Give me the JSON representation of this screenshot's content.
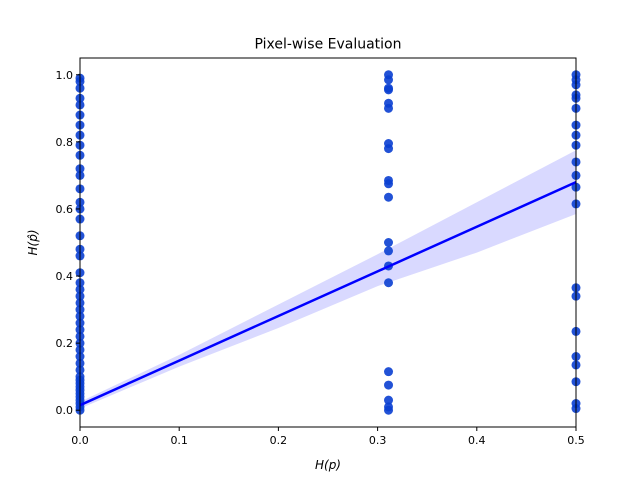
{
  "chart_data": {
    "type": "scatter",
    "title": "Pixel-wise Evaluation",
    "xlabel": "H(p)",
    "ylabel": "H(p̂)",
    "xlim": [
      0.0,
      0.5
    ],
    "ylim": [
      -0.05,
      1.05
    ],
    "xticks": [
      0.0,
      0.1,
      0.2,
      0.3,
      0.4,
      0.5
    ],
    "xtick_labels": [
      "0.0",
      "0.1",
      "0.2",
      "0.3",
      "0.4",
      "0.5"
    ],
    "yticks": [
      0.0,
      0.2,
      0.4,
      0.6,
      0.8,
      1.0
    ],
    "ytick_labels": [
      "0.0",
      "0.2",
      "0.4",
      "0.6",
      "0.8",
      "1.0"
    ],
    "grid": false,
    "marker_color": "#0a3fd1",
    "line_color": "#0000ff",
    "band_color": "#d9d9ff",
    "points": [
      {
        "x": 0.0,
        "y": 0.0
      },
      {
        "x": 0.0,
        "y": 0.01
      },
      {
        "x": 0.0,
        "y": 0.02
      },
      {
        "x": 0.0,
        "y": 0.03
      },
      {
        "x": 0.0,
        "y": 0.04
      },
      {
        "x": 0.0,
        "y": 0.05
      },
      {
        "x": 0.0,
        "y": 0.06
      },
      {
        "x": 0.0,
        "y": 0.07
      },
      {
        "x": 0.0,
        "y": 0.08
      },
      {
        "x": 0.0,
        "y": 0.09
      },
      {
        "x": 0.0,
        "y": 0.1
      },
      {
        "x": 0.0,
        "y": 0.12
      },
      {
        "x": 0.0,
        "y": 0.14
      },
      {
        "x": 0.0,
        "y": 0.16
      },
      {
        "x": 0.0,
        "y": 0.18
      },
      {
        "x": 0.0,
        "y": 0.2
      },
      {
        "x": 0.0,
        "y": 0.22
      },
      {
        "x": 0.0,
        "y": 0.24
      },
      {
        "x": 0.0,
        "y": 0.26
      },
      {
        "x": 0.0,
        "y": 0.28
      },
      {
        "x": 0.0,
        "y": 0.3
      },
      {
        "x": 0.0,
        "y": 0.32
      },
      {
        "x": 0.0,
        "y": 0.34
      },
      {
        "x": 0.0,
        "y": 0.36
      },
      {
        "x": 0.0,
        "y": 0.38
      },
      {
        "x": 0.0,
        "y": 0.41
      },
      {
        "x": 0.0,
        "y": 0.46
      },
      {
        "x": 0.0,
        "y": 0.48
      },
      {
        "x": 0.0,
        "y": 0.52
      },
      {
        "x": 0.0,
        "y": 0.57
      },
      {
        "x": 0.0,
        "y": 0.6
      },
      {
        "x": 0.0,
        "y": 0.62
      },
      {
        "x": 0.0,
        "y": 0.66
      },
      {
        "x": 0.0,
        "y": 0.7
      },
      {
        "x": 0.0,
        "y": 0.72
      },
      {
        "x": 0.0,
        "y": 0.76
      },
      {
        "x": 0.0,
        "y": 0.79
      },
      {
        "x": 0.0,
        "y": 0.82
      },
      {
        "x": 0.0,
        "y": 0.85
      },
      {
        "x": 0.0,
        "y": 0.88
      },
      {
        "x": 0.0,
        "y": 0.91
      },
      {
        "x": 0.0,
        "y": 0.93
      },
      {
        "x": 0.0,
        "y": 0.96
      },
      {
        "x": 0.0,
        "y": 0.98
      },
      {
        "x": 0.0,
        "y": 0.99
      },
      {
        "x": 0.311,
        "y": 0.0
      },
      {
        "x": 0.311,
        "y": 0.01
      },
      {
        "x": 0.311,
        "y": 0.03
      },
      {
        "x": 0.311,
        "y": 0.075
      },
      {
        "x": 0.311,
        "y": 0.115
      },
      {
        "x": 0.311,
        "y": 0.38
      },
      {
        "x": 0.311,
        "y": 0.43
      },
      {
        "x": 0.311,
        "y": 0.475
      },
      {
        "x": 0.311,
        "y": 0.5
      },
      {
        "x": 0.311,
        "y": 0.635
      },
      {
        "x": 0.311,
        "y": 0.675
      },
      {
        "x": 0.311,
        "y": 0.685
      },
      {
        "x": 0.311,
        "y": 0.78
      },
      {
        "x": 0.311,
        "y": 0.795
      },
      {
        "x": 0.311,
        "y": 0.9
      },
      {
        "x": 0.311,
        "y": 0.915
      },
      {
        "x": 0.311,
        "y": 0.955
      },
      {
        "x": 0.311,
        "y": 0.96
      },
      {
        "x": 0.311,
        "y": 0.985
      },
      {
        "x": 0.311,
        "y": 1.0
      },
      {
        "x": 0.5,
        "y": 0.005
      },
      {
        "x": 0.5,
        "y": 0.02
      },
      {
        "x": 0.5,
        "y": 0.085
      },
      {
        "x": 0.5,
        "y": 0.135
      },
      {
        "x": 0.5,
        "y": 0.16
      },
      {
        "x": 0.5,
        "y": 0.235
      },
      {
        "x": 0.5,
        "y": 0.34
      },
      {
        "x": 0.5,
        "y": 0.365
      },
      {
        "x": 0.5,
        "y": 0.615
      },
      {
        "x": 0.5,
        "y": 0.665
      },
      {
        "x": 0.5,
        "y": 0.7
      },
      {
        "x": 0.5,
        "y": 0.74
      },
      {
        "x": 0.5,
        "y": 0.79
      },
      {
        "x": 0.5,
        "y": 0.82
      },
      {
        "x": 0.5,
        "y": 0.85
      },
      {
        "x": 0.5,
        "y": 0.9
      },
      {
        "x": 0.5,
        "y": 0.93
      },
      {
        "x": 0.5,
        "y": 0.94
      },
      {
        "x": 0.5,
        "y": 0.97
      },
      {
        "x": 0.5,
        "y": 0.985
      },
      {
        "x": 0.5,
        "y": 1.0
      }
    ],
    "regression": {
      "x": [
        0.0,
        0.1,
        0.2,
        0.3,
        0.4,
        0.5
      ],
      "y": [
        0.015,
        0.148,
        0.281,
        0.414,
        0.547,
        0.68
      ],
      "ci_lower": [
        0.005,
        0.13,
        0.245,
        0.37,
        0.47,
        0.585
      ],
      "ci_upper": [
        0.025,
        0.165,
        0.315,
        0.465,
        0.62,
        0.775
      ]
    }
  }
}
